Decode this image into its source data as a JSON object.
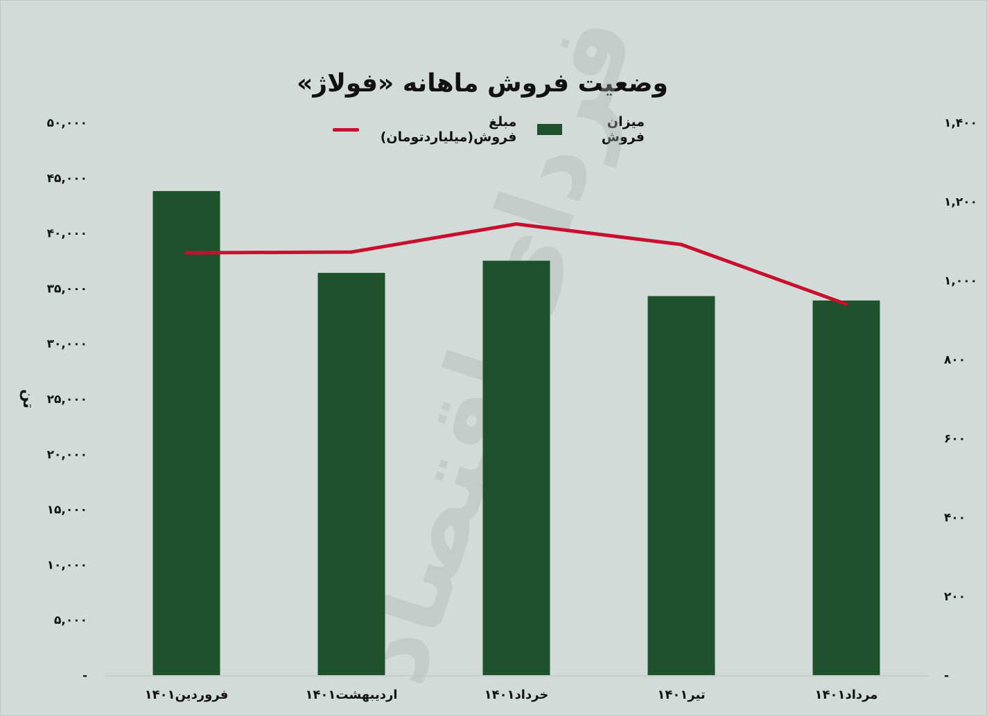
{
  "chart_data": {
    "type": "bar",
    "title": "وضعیت فروش ماهانه «فولاژ»",
    "categories": [
      "فروردین۱۴۰۱",
      "اردیبهشت۱۴۰۱",
      "خرداد۱۴۰۱",
      "تیر۱۴۰۱",
      "مرداد۱۴۰۱"
    ],
    "series": [
      {
        "name": "میزان فروش",
        "kind": "bar",
        "axis": "left",
        "color": "#1d522d",
        "values": [
          43800,
          36400,
          37500,
          34300,
          33900
        ]
      },
      {
        "name": "مبلغ فروش(میلیاردتومان)",
        "kind": "line",
        "axis": "right",
        "color": "#c8102e",
        "values": [
          1070,
          1072,
          1143,
          1091,
          940
        ]
      }
    ],
    "ylabel_left": "تن",
    "ylim_left": [
      0,
      50000
    ],
    "yticks_left": [
      "-",
      "۵,۰۰۰",
      "۱۰,۰۰۰",
      "۱۵,۰۰۰",
      "۲۰,۰۰۰",
      "۲۵,۰۰۰",
      "۳۰,۰۰۰",
      "۳۵,۰۰۰",
      "۴۰,۰۰۰",
      "۴۵,۰۰۰",
      "۵۰,۰۰۰"
    ],
    "ylim_right": [
      0,
      1400
    ],
    "yticks_right": [
      "-",
      "۲۰۰",
      "۴۰۰",
      "۶۰۰",
      "۸۰۰",
      "۱,۰۰۰",
      "۱,۲۰۰",
      "۱,۴۰۰"
    ],
    "grid": false,
    "legend_position": "top"
  },
  "watermark": "فردای اقتصاد"
}
